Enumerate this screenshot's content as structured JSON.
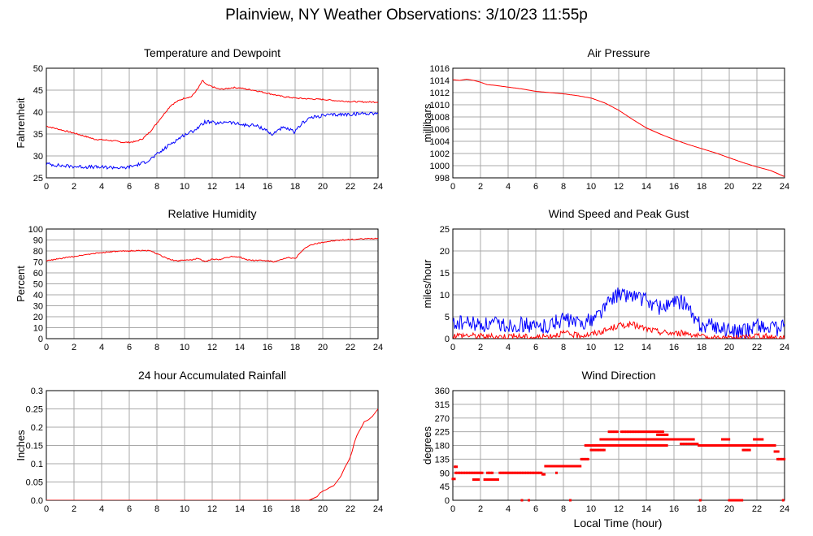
{
  "page": {
    "title": "Plainview, NY Weather Observations: 3/10/23 11:55p"
  },
  "x_axis_label": "Local Time (hour)",
  "chart_data": [
    {
      "id": "temp",
      "type": "line",
      "title": "Temperature and Dewpoint",
      "ylabel": "Fahrenheit",
      "xlim": [
        0,
        24
      ],
      "ylim": [
        25,
        50
      ],
      "yticks": [
        25,
        30,
        35,
        40,
        45,
        50
      ],
      "xticks": [
        0,
        2,
        4,
        6,
        8,
        10,
        12,
        14,
        16,
        18,
        20,
        22,
        24
      ],
      "grid": true,
      "series": [
        {
          "color": "#ff0000",
          "jitter": 0.15,
          "x": [
            0,
            1,
            2,
            3,
            3.5,
            4,
            5,
            5.5,
            6,
            6.5,
            7,
            7.5,
            8,
            8.5,
            9,
            9.5,
            10,
            10.5,
            11,
            11.3,
            11.6,
            12,
            12.5,
            13,
            13.5,
            14,
            14.5,
            15,
            16,
            17,
            18,
            19,
            20,
            21,
            22,
            23,
            24
          ],
          "y": [
            36.8,
            36,
            35.2,
            34.3,
            33.8,
            33.7,
            33.4,
            33.1,
            33.1,
            33.3,
            34,
            35.5,
            37.5,
            39.5,
            41.5,
            42.5,
            43.2,
            43.5,
            45.5,
            47.2,
            46.2,
            45.8,
            45.2,
            45.3,
            45.6,
            45.5,
            45.2,
            45,
            44.3,
            43.6,
            43.2,
            43,
            42.9,
            42.6,
            42.4,
            42.3,
            42.3
          ]
        },
        {
          "color": "#0000ff",
          "jitter": 0.4,
          "x": [
            0,
            1,
            2,
            3,
            4,
            5,
            5.5,
            6,
            6.5,
            7,
            7.5,
            8,
            8.5,
            9,
            9.5,
            10,
            10.5,
            11,
            11.5,
            12,
            12.5,
            13,
            13.5,
            14,
            14.5,
            15,
            15.5,
            16,
            16.3,
            16.7,
            17,
            17.5,
            18,
            18.5,
            19,
            20,
            21,
            22,
            23,
            24
          ],
          "y": [
            28.2,
            27.8,
            27.6,
            27.5,
            27.4,
            27.4,
            27.2,
            27.5,
            27.9,
            28.4,
            29.2,
            30.3,
            31.5,
            32.8,
            33.8,
            34.8,
            35.5,
            36.5,
            37.8,
            37.6,
            37.3,
            37.9,
            37.5,
            37.2,
            37,
            37,
            36.5,
            35.8,
            34.6,
            35.9,
            36.3,
            36.1,
            35.4,
            37.5,
            38.6,
            39.2,
            39.4,
            39.5,
            39.7,
            39.8
          ]
        }
      ]
    },
    {
      "id": "pressure",
      "type": "line",
      "title": "Air Pressure",
      "ylabel": "millibars",
      "xlim": [
        0,
        24
      ],
      "ylim": [
        998,
        1016
      ],
      "yticks": [
        998,
        1000,
        1002,
        1004,
        1006,
        1008,
        1010,
        1012,
        1014,
        1016
      ],
      "xticks": [
        0,
        2,
        4,
        6,
        8,
        10,
        12,
        14,
        16,
        18,
        20,
        22,
        24
      ],
      "grid": true,
      "series": [
        {
          "color": "#ff0000",
          "jitter": 0,
          "x": [
            0,
            0.5,
            1,
            1.5,
            2,
            2.5,
            3,
            4,
            5,
            6,
            7,
            8,
            9,
            10,
            11,
            12,
            13,
            14,
            15,
            16,
            17,
            18,
            19,
            20,
            21,
            22,
            23,
            24
          ],
          "y": [
            1014.1,
            1014,
            1014.2,
            1014,
            1013.7,
            1013.3,
            1013.2,
            1012.9,
            1012.6,
            1012.2,
            1012,
            1011.8,
            1011.5,
            1011.1,
            1010.3,
            1009.1,
            1007.6,
            1006.2,
            1005.2,
            1004.3,
            1003.5,
            1002.8,
            1002.1,
            1001.3,
            1000.5,
            999.8,
            999.2,
            998.2
          ]
        }
      ]
    },
    {
      "id": "humidity",
      "type": "line",
      "title": "Relative Humidity",
      "ylabel": "Percent",
      "xlim": [
        0,
        24
      ],
      "ylim": [
        0,
        100
      ],
      "yticks": [
        0,
        10,
        20,
        30,
        40,
        50,
        60,
        70,
        80,
        90,
        100
      ],
      "xticks": [
        0,
        2,
        4,
        6,
        8,
        10,
        12,
        14,
        16,
        18,
        20,
        22,
        24
      ],
      "grid": true,
      "series": [
        {
          "color": "#ff0000",
          "jitter": 0.5,
          "x": [
            0,
            1,
            2,
            3,
            4,
            5,
            6,
            7,
            7.5,
            8,
            8.5,
            9,
            9.5,
            10,
            10.5,
            11,
            11.5,
            12,
            12.5,
            13,
            13.5,
            14,
            14.5,
            15,
            15.5,
            16,
            16.5,
            17,
            17.5,
            18,
            18.5,
            19,
            20,
            21,
            22,
            23,
            24
          ],
          "y": [
            71,
            73,
            75,
            77,
            78.5,
            79.5,
            80,
            80.5,
            80,
            77.5,
            74.5,
            72,
            71,
            72,
            71.5,
            73.5,
            70,
            72.5,
            72,
            74,
            75,
            74.5,
            72,
            71.5,
            71.5,
            71,
            70,
            72,
            74,
            73,
            80,
            85,
            88,
            89.5,
            90.5,
            91,
            91.5
          ]
        }
      ]
    },
    {
      "id": "wind",
      "type": "line",
      "title": "Wind Speed and Peak Gust",
      "ylabel": "miles/hour",
      "xlim": [
        0,
        24
      ],
      "ylim": [
        0,
        25
      ],
      "yticks": [
        0,
        5,
        10,
        15,
        20,
        25
      ],
      "xticks": [
        0,
        2,
        4,
        6,
        8,
        10,
        12,
        14,
        16,
        18,
        20,
        22,
        24
      ],
      "grid": true,
      "series": [
        {
          "color": "#0000ff",
          "jitter": 1.8,
          "x": [
            0,
            1,
            2,
            3,
            4,
            5,
            6,
            7,
            8,
            9,
            10,
            11,
            11.5,
            12,
            13,
            14,
            15,
            16,
            16.8,
            17.5,
            18,
            19,
            20,
            21,
            22,
            23,
            24
          ],
          "y": [
            3.5,
            3.5,
            3,
            3.2,
            3,
            3.3,
            2.5,
            3.2,
            4.5,
            3.5,
            4.2,
            7,
            9.5,
            10,
            10,
            8.5,
            7,
            8,
            8.5,
            4,
            3,
            3,
            1.5,
            1.5,
            3.5,
            2,
            2.5
          ]
        },
        {
          "color": "#ff0000",
          "jitter": 0.7,
          "x": [
            0,
            1,
            2,
            3,
            4,
            5,
            6,
            7,
            8,
            9,
            10,
            11,
            12,
            13,
            14,
            15,
            16,
            17,
            18,
            19,
            20,
            21,
            22,
            23,
            24
          ],
          "y": [
            0.8,
            0.8,
            0.6,
            0.4,
            0.6,
            0.5,
            0.3,
            0.6,
            1.3,
            0.7,
            1,
            1.8,
            3,
            3.2,
            2.2,
            1.5,
            1.2,
            1.3,
            0.3,
            0.2,
            0.2,
            0.2,
            0.8,
            0.3,
            0.2
          ]
        }
      ]
    },
    {
      "id": "rain",
      "type": "line",
      "title": "24 hour Accumulated Rainfall",
      "ylabel": "Inches",
      "xlim": [
        0,
        24
      ],
      "ylim": [
        0,
        0.3
      ],
      "yticks": [
        0,
        0.05,
        0.1,
        0.15,
        0.2,
        0.25,
        0.3
      ],
      "ytick_labels": [
        "0.0",
        "0.05",
        "0.1",
        "0.15",
        "0.2",
        "0.25",
        "0.3"
      ],
      "xticks": [
        0,
        2,
        4,
        6,
        8,
        10,
        12,
        14,
        16,
        18,
        20,
        22,
        24
      ],
      "grid": true,
      "series": [
        {
          "color": "#ff0000",
          "jitter": 0,
          "x": [
            0,
            19,
            19.3,
            19.6,
            19.8,
            20,
            20.3,
            20.5,
            20.8,
            21,
            21.3,
            21.6,
            21.9,
            22.1,
            22.3,
            22.5,
            22.8,
            23,
            23.3,
            23.6,
            23.8,
            24
          ],
          "y": [
            0,
            0,
            0.005,
            0.01,
            0.02,
            0.025,
            0.03,
            0.035,
            0.04,
            0.05,
            0.065,
            0.09,
            0.11,
            0.13,
            0.16,
            0.18,
            0.2,
            0.215,
            0.22,
            0.23,
            0.24,
            0.25
          ]
        }
      ]
    },
    {
      "id": "direction",
      "type": "scatter",
      "title": "Wind Direction",
      "ylabel": "degrees",
      "xlim": [
        0,
        24
      ],
      "ylim": [
        0,
        360
      ],
      "yticks": [
        0,
        45,
        90,
        135,
        180,
        225,
        270,
        315,
        360
      ],
      "xticks": [
        0,
        2,
        4,
        6,
        8,
        10,
        12,
        14,
        16,
        18,
        20,
        22,
        24
      ],
      "grid": true,
      "series": [
        {
          "color": "#ff0000",
          "step": 0.12,
          "segments": [
            [
              0.0,
              0.15,
              70
            ],
            [
              0.15,
              0.3,
              110
            ],
            [
              0.2,
              2.2,
              90
            ],
            [
              1.5,
              1.9,
              68
            ],
            [
              2.3,
              3.3,
              68
            ],
            [
              2.5,
              2.9,
              90
            ],
            [
              3.4,
              6.5,
              90
            ],
            [
              5.0,
              5.1,
              0
            ],
            [
              5.5,
              5.6,
              0
            ],
            [
              6.5,
              6.7,
              85
            ],
            [
              6.7,
              9.3,
              112
            ],
            [
              7.5,
              7.6,
              90
            ],
            [
              8.5,
              8.6,
              0
            ],
            [
              9.3,
              9.8,
              135
            ],
            [
              9.6,
              10.3,
              180
            ],
            [
              10.0,
              11.0,
              165
            ],
            [
              10.2,
              15.5,
              180
            ],
            [
              10.7,
              11.5,
              200
            ],
            [
              11.0,
              16.0,
              200
            ],
            [
              11.3,
              12.0,
              225
            ],
            [
              12.2,
              15.2,
              225
            ],
            [
              14.8,
              15.6,
              215
            ],
            [
              15.5,
              17.5,
              200
            ],
            [
              16.5,
              17.8,
              185
            ],
            [
              17.8,
              21.5,
              180
            ],
            [
              19.5,
              20.0,
              200
            ],
            [
              20.0,
              20.5,
              0
            ],
            [
              20.2,
              21.0,
              0
            ],
            [
              21.0,
              21.5,
              165
            ],
            [
              21.5,
              23.3,
              180
            ],
            [
              21.8,
              22.5,
              200
            ],
            [
              23.3,
              23.6,
              160
            ],
            [
              23.5,
              24.0,
              135
            ],
            [
              23.9,
              24.0,
              0
            ],
            [
              17.9,
              18.0,
              0
            ]
          ]
        }
      ]
    }
  ]
}
